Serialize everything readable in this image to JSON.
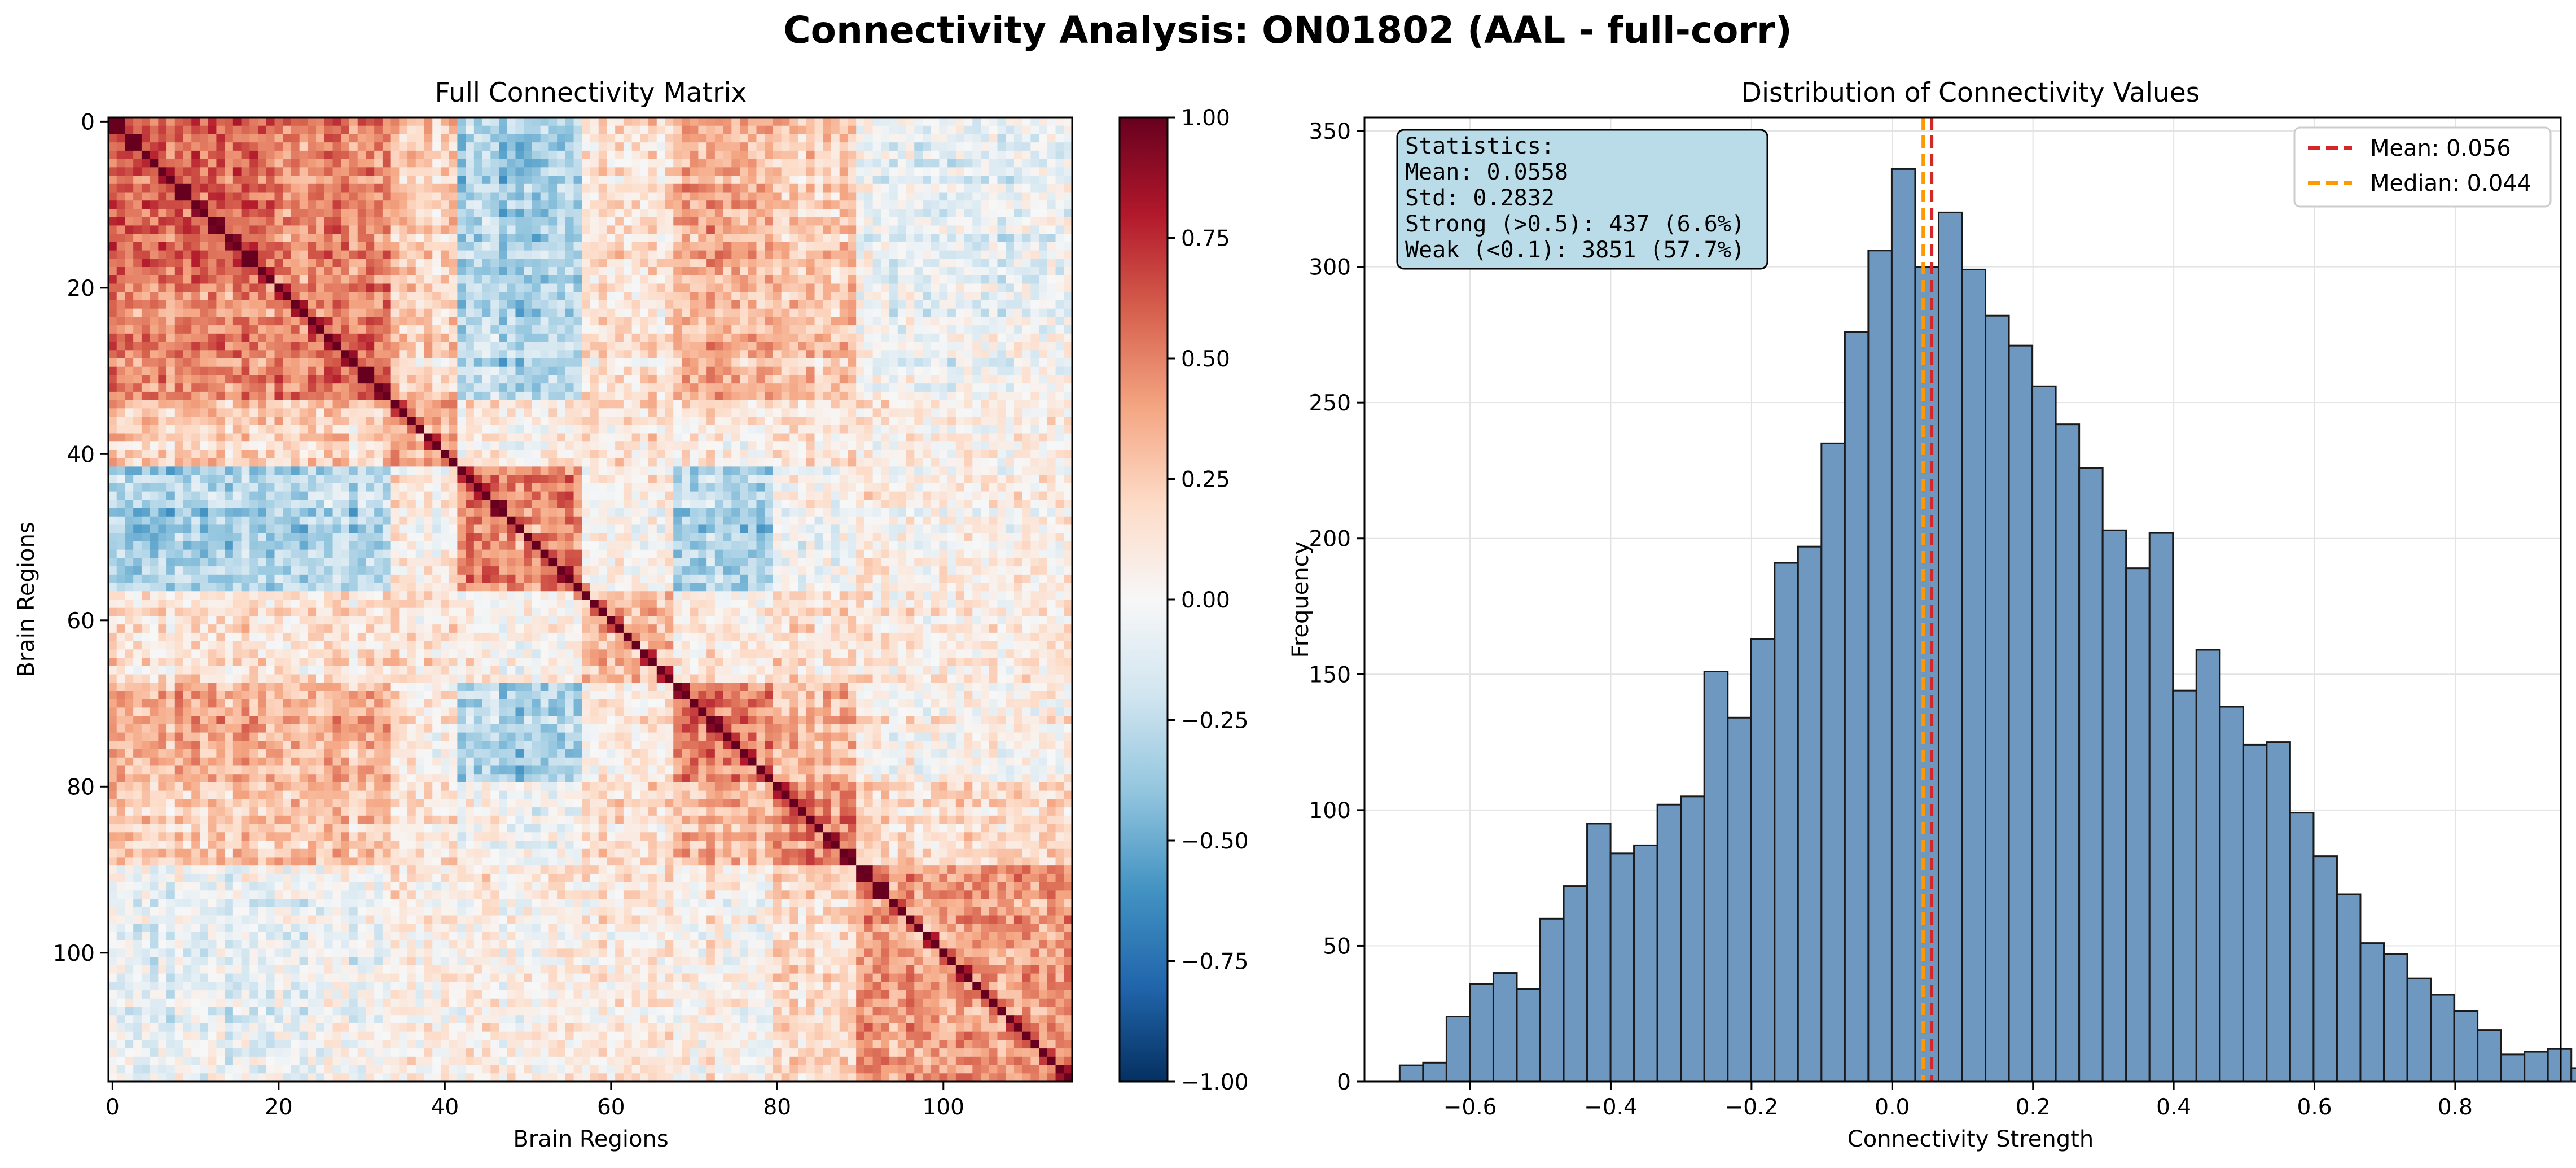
{
  "figure": {
    "title": "Connectivity Analysis: ON01802 (AAL - full-corr)"
  },
  "chart_data": [
    {
      "type": "heatmap",
      "title": "Full Connectivity Matrix",
      "xlabel": "Brain Regions",
      "ylabel": "Brain Regions",
      "n_regions": 116,
      "xlim": [
        0,
        115
      ],
      "ylim": [
        115,
        0
      ],
      "xticks": [
        "0",
        "20",
        "40",
        "60",
        "80",
        "100"
      ],
      "yticks": [
        "0",
        "20",
        "40",
        "60",
        "80",
        "100"
      ],
      "colormap": "RdBu_r",
      "vmin": -1.0,
      "vmax": 1.0,
      "colorbar_ticks": [
        "1.00",
        "0.75",
        "0.50",
        "0.25",
        "0.00",
        "−0.25",
        "−0.50",
        "−0.75",
        "−1.00"
      ],
      "diagonal_value": 1.0,
      "colors": {
        "low": "#053061",
        "mid": "#f7f7f7",
        "high": "#67001f"
      }
    },
    {
      "type": "bar",
      "title": "Distribution of Connectivity Values",
      "xlabel": "Connectivity Strength",
      "ylabel": "Frequency",
      "xlim": [
        -0.75,
        0.95
      ],
      "ylim": [
        0,
        355
      ],
      "grid": true,
      "xticks": [
        "−0.6",
        "−0.4",
        "−0.2",
        "0.0",
        "0.2",
        "0.4",
        "0.6",
        "0.8"
      ],
      "yticks": [
        "0",
        "50",
        "100",
        "150",
        "200",
        "250",
        "300",
        "350"
      ],
      "bin_start": -0.7,
      "bin_width": 0.0333,
      "values": [
        6,
        7,
        24,
        36,
        40,
        34,
        60,
        72,
        95,
        84,
        87,
        102,
        105,
        151,
        134,
        163,
        191,
        197,
        235,
        276,
        306,
        336,
        300,
        320,
        299,
        282,
        271,
        256,
        242,
        226,
        203,
        189,
        202,
        144,
        159,
        138,
        124,
        125,
        99,
        83,
        69,
        51,
        47,
        38,
        32,
        26,
        19,
        10,
        11,
        12,
        5
      ],
      "mean": 0.056,
      "median": 0.044,
      "legend": [
        {
          "label": "Mean: 0.056",
          "color": "#d62728"
        },
        {
          "label": "Median: 0.044",
          "color": "#ff9900"
        }
      ],
      "legend_position": "upper right",
      "bar_color": "#6f98c0",
      "stats": {
        "lines": [
          "Statistics:",
          "Mean: 0.0558",
          "Std: 0.2832",
          "Strong (>0.5): 437 (6.6%)",
          "Weak (<0.1): 3851 (57.7%)"
        ],
        "box_color": "#b9dce8"
      }
    }
  ]
}
